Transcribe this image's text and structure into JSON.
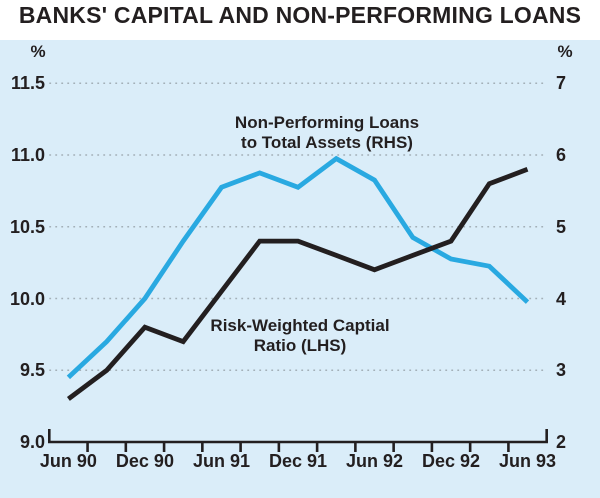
{
  "title": "BANKS' CAPITAL AND NON-PERFORMING LOANS",
  "colors": {
    "background_panel": "#daedf9",
    "npl_line": "#29a9e1",
    "capital_line": "#231f20",
    "gridline": "#a3b0b8",
    "text": "#231f20"
  },
  "chart_data": {
    "type": "line",
    "title": "BANKS' CAPITAL AND NON-PERFORMING LOANS",
    "grid": "dotted-horizontal",
    "x": [
      "Jun 90",
      "Sep 90",
      "Dec 90",
      "Mar 91",
      "Jun 91",
      "Sep 91",
      "Dec 91",
      "Mar 92",
      "Jun 92",
      "Sep 92",
      "Dec 92",
      "Mar 93",
      "Jun 93"
    ],
    "x_tick_labels": [
      "Jun 90",
      "Dec 90",
      "Jun 91",
      "Dec 91",
      "Jun 92",
      "Dec 92",
      "Jun 93"
    ],
    "series": [
      {
        "name": "Non-Performing Loans to Total Assets (RHS)",
        "axis": "right",
        "color": "#29a9e1",
        "values": [
          2.9,
          3.4,
          4.0,
          4.8,
          5.55,
          5.75,
          5.55,
          5.95,
          5.65,
          4.85,
          4.55,
          4.45,
          3.95
        ]
      },
      {
        "name": "Risk-Weighted Captial Ratio (LHS)",
        "axis": "left",
        "color": "#231f20",
        "values": [
          9.3,
          9.5,
          9.8,
          9.7,
          10.05,
          10.4,
          10.4,
          10.3,
          10.2,
          10.3,
          10.4,
          10.8,
          10.9
        ]
      }
    ],
    "left_axis": {
      "unit": "%",
      "min": 9.0,
      "max": 11.5,
      "tick_values": [
        11.5,
        11.0,
        10.5,
        10.0,
        9.5,
        9.0
      ],
      "tick_labels": [
        "11.5",
        "11.0",
        "10.5",
        "10.0",
        "9.5",
        "9.0"
      ]
    },
    "right_axis": {
      "unit": "%",
      "min": 2,
      "max": 7,
      "tick_values": [
        7,
        6,
        5,
        4,
        3,
        2
      ],
      "tick_labels": [
        "7",
        "6",
        "5",
        "4",
        "3",
        "2"
      ]
    },
    "annotations": [
      {
        "lines": [
          "Non-Performing Loans",
          "to Total Assets (RHS)"
        ]
      },
      {
        "lines": [
          "Risk-Weighted Captial",
          "Ratio (LHS)"
        ]
      }
    ]
  }
}
